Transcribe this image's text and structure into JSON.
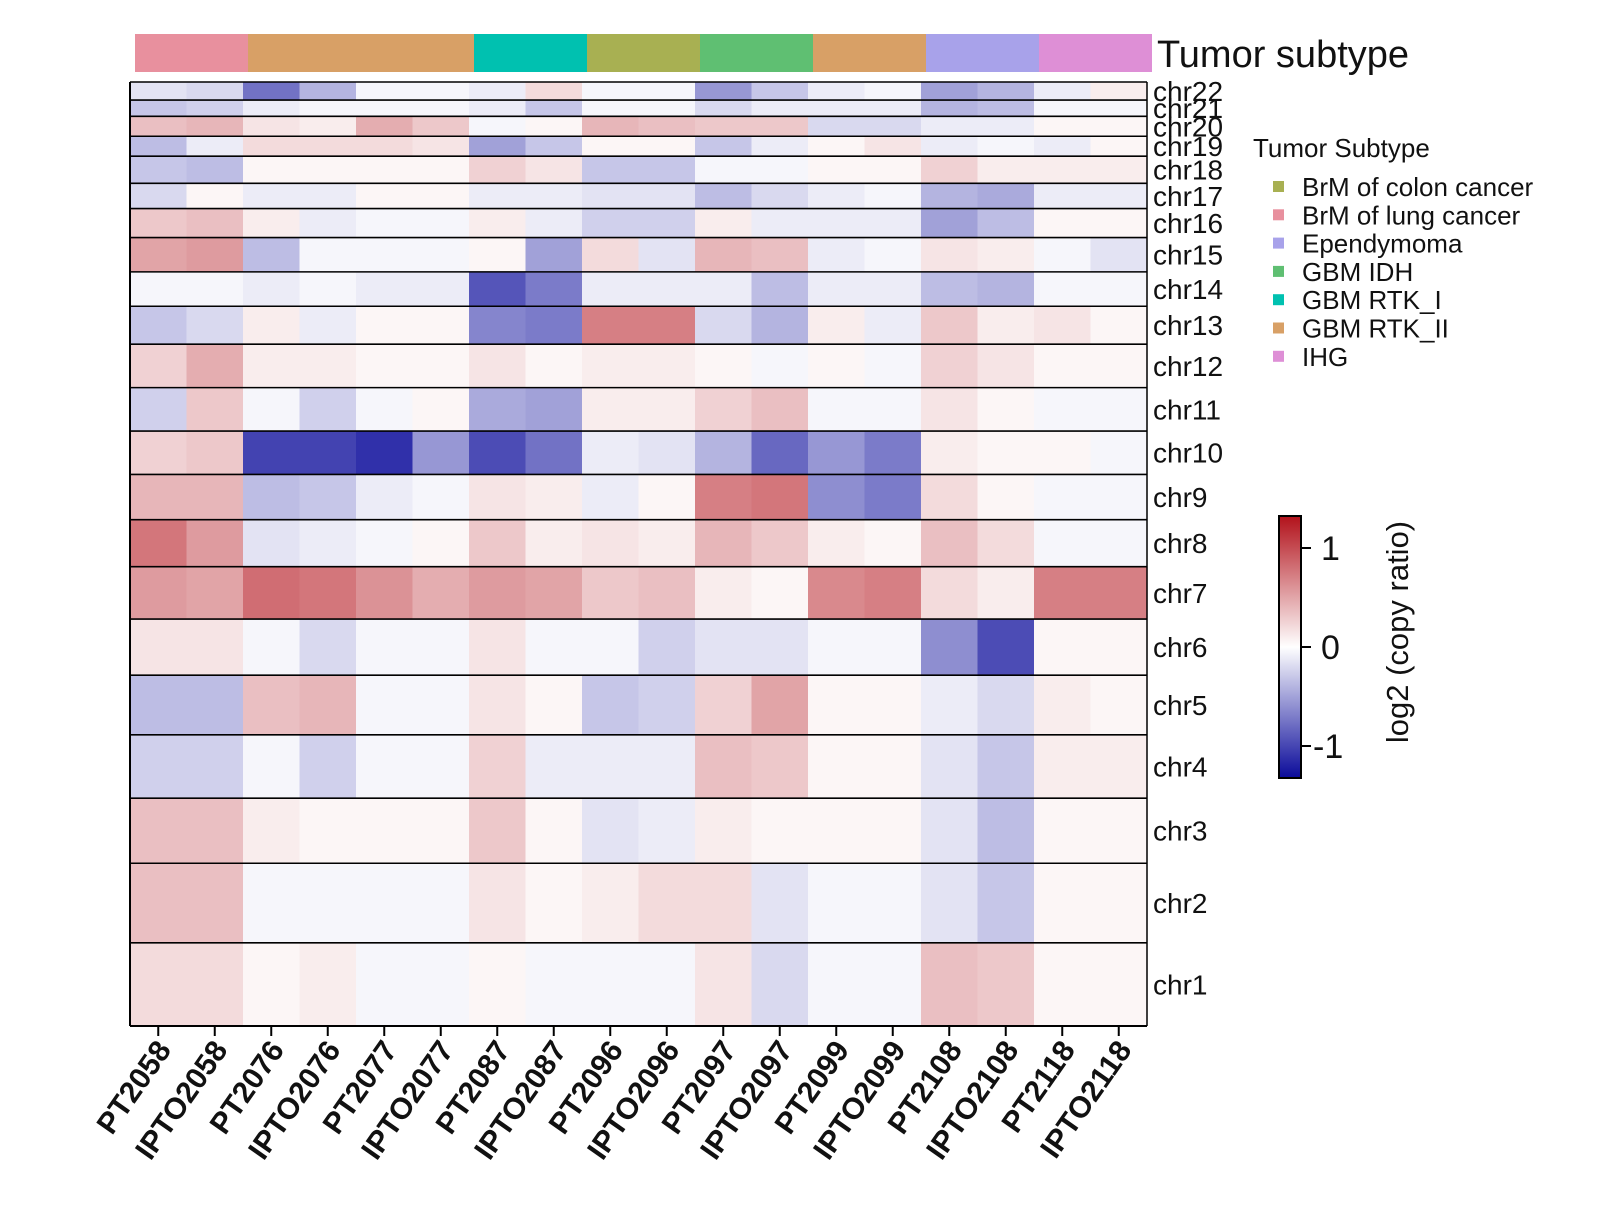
{
  "chart_data": {
    "type": "heatmap",
    "title": "",
    "annotation_title": "Tumor subtype",
    "legend_title": "Tumor Subtype",
    "colorbar_label": "log2 (copy ratio)",
    "colorbar_ticks": [
      "1",
      "0",
      "-1"
    ],
    "colorbar_range": [
      -1.3,
      1.3
    ],
    "samples": [
      "PT2058",
      "IPTO2058",
      "PT2076",
      "IPTO2076",
      "PT2077",
      "IPTO2077",
      "PT2087",
      "IPTO2087",
      "PT2096",
      "IPTO2096",
      "PT2097",
      "IPTO2097",
      "PT2099",
      "IPTO2099",
      "PT2108",
      "IPTO2108",
      "PT2118",
      "IPTO2118"
    ],
    "subtype_legend": [
      {
        "label": "BrM of colon cancer",
        "color": "#a8b052"
      },
      {
        "label": "BrM of lung cancer",
        "color": "#e8909e"
      },
      {
        "label": "Ependymoma",
        "color": "#a8a2ea"
      },
      {
        "label": "GBM IDH",
        "color": "#5fbf72"
      },
      {
        "label": "GBM RTK_I",
        "color": "#00c1b0"
      },
      {
        "label": "GBM RTK_II",
        "color": "#d8a066"
      },
      {
        "label": "IHG",
        "color": "#de8fd6"
      }
    ],
    "subtype_bar": [
      {
        "subtype": "BrM of lung cancer",
        "samples": [
          "PT2058",
          "IPTO2058"
        ]
      },
      {
        "subtype": "GBM RTK_II",
        "samples": [
          "PT2076",
          "IPTO2076",
          "PT2077",
          "IPTO2077"
        ]
      },
      {
        "subtype": "GBM RTK_I",
        "samples": [
          "PT2087",
          "IPTO2087"
        ]
      },
      {
        "subtype": "BrM of colon cancer",
        "samples": [
          "PT2096",
          "IPTO2096"
        ]
      },
      {
        "subtype": "GBM IDH",
        "samples": [
          "PT2097",
          "IPTO2097"
        ]
      },
      {
        "subtype": "GBM RTK_II",
        "samples": [
          "PT2099",
          "IPTO2099"
        ]
      },
      {
        "subtype": "Ependymoma",
        "samples": [
          "PT2108",
          "IPTO2108"
        ]
      },
      {
        "subtype": "IHG",
        "samples": [
          "PT2118",
          "IPTO2118"
        ]
      }
    ],
    "chromosomes": [
      {
        "name": "chr22",
        "rel_size": 1.0,
        "values": [
          -0.15,
          -0.2,
          -0.75,
          -0.4,
          -0.05,
          -0.05,
          -0.1,
          0.2,
          -0.05,
          -0.05,
          -0.55,
          -0.3,
          -0.1,
          -0.05,
          -0.5,
          -0.4,
          -0.1,
          0.1
        ]
      },
      {
        "name": "chr21",
        "rel_size": 0.9,
        "values": [
          -0.3,
          -0.25,
          -0.1,
          -0.05,
          -0.05,
          -0.05,
          -0.1,
          -0.3,
          -0.05,
          -0.05,
          -0.2,
          -0.1,
          -0.1,
          -0.1,
          -0.4,
          -0.35,
          -0.05,
          -0.05
        ]
      },
      {
        "name": "chr20",
        "rel_size": 1.1,
        "values": [
          0.35,
          0.4,
          0.15,
          0.1,
          0.45,
          0.3,
          -0.05,
          0.05,
          0.4,
          0.35,
          0.3,
          0.3,
          -0.2,
          -0.2,
          -0.1,
          -0.1,
          0.05,
          0.05
        ]
      },
      {
        "name": "chr19",
        "rel_size": 1.1,
        "values": [
          -0.35,
          -0.1,
          0.2,
          0.2,
          0.2,
          0.15,
          -0.5,
          -0.3,
          0.05,
          0.05,
          -0.3,
          -0.1,
          0.05,
          0.15,
          -0.1,
          -0.05,
          -0.1,
          0.05
        ]
      },
      {
        "name": "chr18",
        "rel_size": 1.5,
        "values": [
          -0.3,
          -0.35,
          0.05,
          0.05,
          0.05,
          0.05,
          0.25,
          0.15,
          -0.3,
          -0.3,
          -0.05,
          -0.05,
          0.05,
          0.05,
          0.25,
          0.1,
          0.1,
          0.1
        ]
      },
      {
        "name": "chr17",
        "rel_size": 1.4,
        "values": [
          -0.2,
          0.05,
          -0.1,
          -0.1,
          0.05,
          0.05,
          -0.1,
          -0.1,
          -0.15,
          -0.15,
          -0.35,
          -0.2,
          -0.1,
          -0.05,
          -0.4,
          -0.45,
          -0.1,
          -0.1
        ]
      },
      {
        "name": "chr16",
        "rel_size": 1.6,
        "values": [
          0.3,
          0.35,
          0.1,
          -0.1,
          -0.05,
          -0.05,
          0.1,
          -0.1,
          -0.25,
          -0.25,
          0.1,
          -0.1,
          -0.1,
          -0.1,
          -0.5,
          -0.35,
          0.05,
          0.05
        ]
      },
      {
        "name": "chr15",
        "rel_size": 1.9,
        "values": [
          0.5,
          0.55,
          -0.35,
          -0.05,
          -0.05,
          -0.05,
          0.05,
          -0.5,
          0.2,
          -0.15,
          0.4,
          0.35,
          -0.1,
          -0.05,
          0.15,
          0.1,
          -0.05,
          -0.15
        ]
      },
      {
        "name": "chr14",
        "rel_size": 1.9,
        "values": [
          -0.05,
          -0.05,
          -0.1,
          -0.05,
          -0.1,
          -0.1,
          -0.9,
          -0.7,
          -0.1,
          -0.1,
          -0.1,
          -0.35,
          -0.1,
          -0.1,
          -0.35,
          -0.4,
          -0.05,
          -0.05
        ]
      },
      {
        "name": "chr13",
        "rel_size": 2.1,
        "values": [
          -0.3,
          -0.2,
          0.1,
          -0.1,
          0.05,
          0.05,
          -0.65,
          -0.7,
          0.7,
          0.7,
          -0.2,
          -0.4,
          0.1,
          -0.1,
          0.3,
          0.1,
          0.15,
          0.05
        ]
      },
      {
        "name": "chr12",
        "rel_size": 2.4,
        "values": [
          0.25,
          0.45,
          0.1,
          0.1,
          0.05,
          0.05,
          0.15,
          0.05,
          0.1,
          0.1,
          0.05,
          -0.05,
          0.05,
          -0.05,
          0.25,
          0.15,
          0.05,
          0.05
        ]
      },
      {
        "name": "chr11",
        "rel_size": 2.4,
        "values": [
          -0.25,
          0.3,
          -0.05,
          -0.25,
          -0.05,
          0.05,
          -0.45,
          -0.5,
          0.1,
          0.1,
          0.25,
          0.35,
          -0.05,
          -0.05,
          0.15,
          0.05,
          -0.05,
          -0.05
        ]
      },
      {
        "name": "chr10",
        "rel_size": 2.4,
        "values": [
          0.25,
          0.3,
          -1.0,
          -1.0,
          -1.1,
          -0.55,
          -0.95,
          -0.75,
          -0.1,
          -0.15,
          -0.4,
          -0.8,
          -0.55,
          -0.7,
          0.1,
          0.05,
          0.05,
          -0.05
        ]
      },
      {
        "name": "chr9",
        "rel_size": 2.5,
        "values": [
          0.4,
          0.4,
          -0.35,
          -0.3,
          -0.1,
          -0.05,
          0.15,
          0.1,
          -0.1,
          0.05,
          0.7,
          0.75,
          -0.6,
          -0.7,
          0.2,
          0.05,
          -0.05,
          -0.05
        ]
      },
      {
        "name": "chr8",
        "rel_size": 2.6,
        "values": [
          0.75,
          0.55,
          -0.15,
          -0.1,
          -0.05,
          0.05,
          0.3,
          0.1,
          0.15,
          0.1,
          0.4,
          0.3,
          0.1,
          0.05,
          0.35,
          0.2,
          -0.05,
          -0.05
        ]
      },
      {
        "name": "chr7",
        "rel_size": 2.9,
        "values": [
          0.55,
          0.5,
          0.8,
          0.75,
          0.6,
          0.45,
          0.55,
          0.5,
          0.3,
          0.35,
          0.1,
          0.05,
          0.65,
          0.7,
          0.2,
          0.1,
          0.7,
          0.7
        ]
      },
      {
        "name": "chr6",
        "rel_size": 3.1,
        "values": [
          0.15,
          0.15,
          -0.05,
          -0.2,
          -0.05,
          -0.05,
          0.15,
          -0.05,
          -0.05,
          -0.25,
          -0.15,
          -0.15,
          -0.05,
          -0.05,
          -0.6,
          -0.95,
          0.05,
          0.05
        ]
      },
      {
        "name": "chr5",
        "rel_size": 3.3,
        "values": [
          -0.35,
          -0.35,
          0.35,
          0.4,
          -0.05,
          -0.05,
          0.15,
          0.05,
          -0.3,
          -0.25,
          0.25,
          0.5,
          0.05,
          0.05,
          -0.1,
          -0.2,
          0.1,
          0.05
        ]
      },
      {
        "name": "chr4",
        "rel_size": 3.5,
        "values": [
          -0.25,
          -0.25,
          -0.05,
          -0.25,
          -0.05,
          -0.05,
          0.25,
          -0.1,
          -0.1,
          -0.1,
          0.35,
          0.3,
          0.05,
          0.05,
          -0.15,
          -0.3,
          0.1,
          0.1
        ]
      },
      {
        "name": "chr3",
        "rel_size": 3.6,
        "values": [
          0.35,
          0.35,
          0.1,
          0.05,
          0.05,
          0.05,
          0.3,
          0.05,
          -0.15,
          -0.1,
          0.1,
          0.05,
          0.05,
          0.05,
          -0.15,
          -0.35,
          0.05,
          0.05
        ]
      },
      {
        "name": "chr2",
        "rel_size": 4.4,
        "values": [
          0.35,
          0.35,
          -0.05,
          -0.05,
          -0.05,
          -0.05,
          0.15,
          0.05,
          0.1,
          0.2,
          0.2,
          -0.15,
          -0.05,
          -0.05,
          -0.15,
          -0.3,
          0.05,
          0.05
        ]
      },
      {
        "name": "chr1",
        "rel_size": 4.6,
        "values": [
          0.2,
          0.2,
          0.05,
          0.1,
          -0.05,
          -0.05,
          0.05,
          -0.05,
          -0.05,
          -0.05,
          0.15,
          -0.2,
          -0.05,
          -0.05,
          0.35,
          0.3,
          0.05,
          0.05
        ]
      }
    ]
  }
}
